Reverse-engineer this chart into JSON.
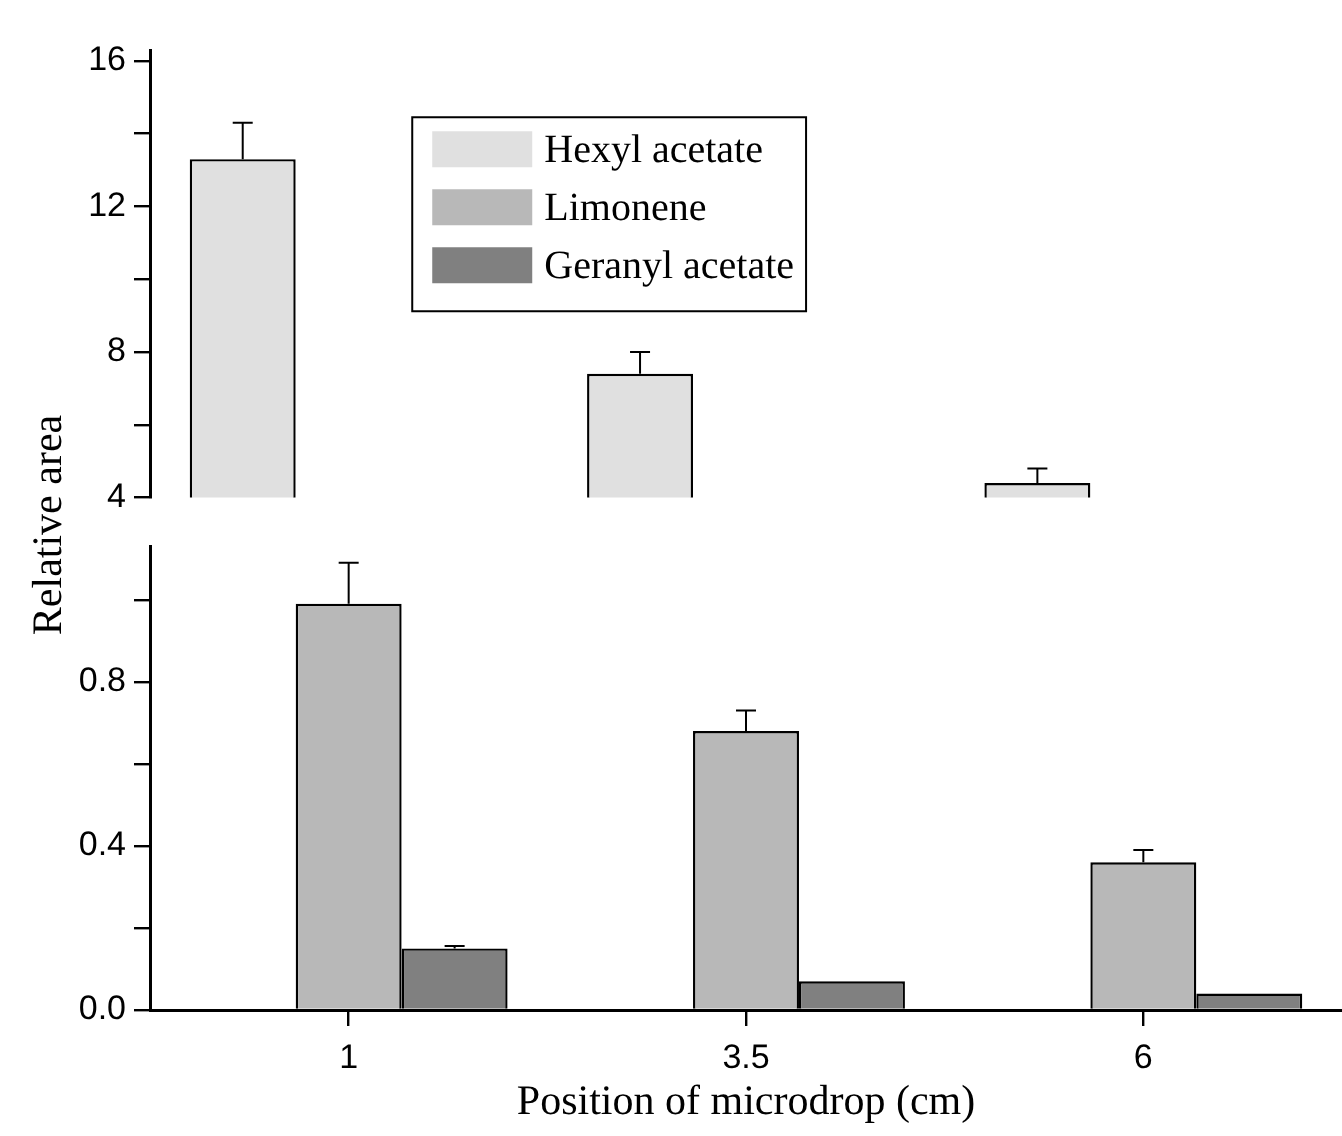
{
  "chart_data": [
    {
      "type": "bar",
      "categories": [
        "1",
        "3.5",
        "6"
      ],
      "series": [
        {
          "name": "Hexyl acetate",
          "color": "#e0e0e0",
          "values": [
            13.3,
            7.4,
            4.4
          ],
          "errors": [
            [
              13.3,
              14.3
            ],
            [
              7.4,
              8.0
            ],
            [
              4.4,
              4.8
            ]
          ]
        },
        {
          "name": "Limonene",
          "color": "#b8b8b8",
          "values": [
            null,
            null,
            null
          ]
        },
        {
          "name": "Geranyl acetate",
          "color": "#808080",
          "values": [
            null,
            null,
            null
          ]
        }
      ],
      "ylim": [
        4,
        16.3
      ],
      "yticks": [
        4,
        {
          "value": 6,
          "label": null
        },
        8,
        {
          "value": 10,
          "label": null
        },
        12,
        {
          "value": 14,
          "label": null
        },
        16
      ],
      "tick_labels": "y",
      "legend": "top",
      "grid": false
    },
    {
      "type": "bar",
      "categories": [
        "1",
        "3.5",
        "6"
      ],
      "xlabel": "Position of microdrop (cm)",
      "ylabel": "Relative area",
      "series": [
        {
          "color": "#e0e0e0",
          "values": [
            null,
            null,
            null
          ]
        },
        {
          "color": "#b8b8b8",
          "values": [
            0.99,
            0.68,
            0.36
          ],
          "errors": [
            [
              0.99,
              1.09
            ],
            [
              0.68,
              0.73
            ],
            [
              0.36,
              0.39
            ]
          ]
        },
        {
          "color": "#808080",
          "values": [
            0.15,
            0.07,
            0.04
          ],
          "errors": [
            [
              0.15,
              0.156
            ],
            null,
            null
          ]
        }
      ],
      "ylim": [
        0,
        1.13
      ],
      "yticks": [
        {
          "value": 0,
          "label": "0.0"
        },
        {
          "value": 0.2,
          "label": null
        },
        {
          "value": 0.4,
          "label": "0.4"
        },
        {
          "value": 0.6,
          "label": null
        },
        {
          "value": 0.8,
          "label": "0.8"
        },
        {
          "value": 1.0,
          "label": null
        }
      ],
      "grid": false
    }
  ]
}
